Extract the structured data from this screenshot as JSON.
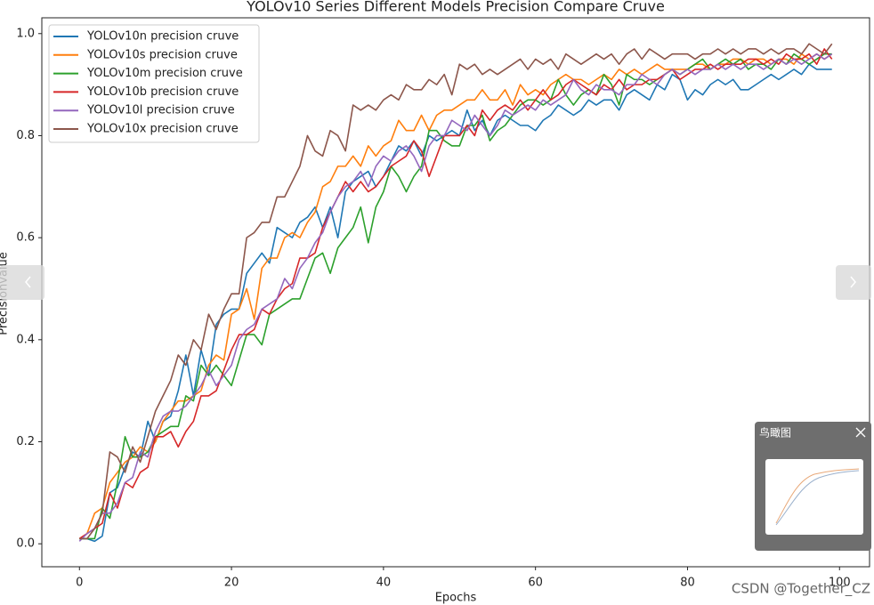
{
  "chart_data": {
    "type": "line",
    "title": "YOLOv10 Series Different Models Precision Compare Cruve",
    "xlabel": "Epochs",
    "ylabel": "Precisionvalue",
    "x": [
      0,
      1,
      2,
      3,
      4,
      5,
      6,
      7,
      8,
      9,
      10,
      11,
      12,
      13,
      14,
      15,
      16,
      17,
      18,
      19,
      20,
      21,
      22,
      23,
      24,
      25,
      26,
      27,
      28,
      29,
      30,
      31,
      32,
      33,
      34,
      35,
      36,
      37,
      38,
      39,
      40,
      41,
      42,
      43,
      44,
      45,
      46,
      47,
      48,
      49,
      50,
      51,
      52,
      53,
      54,
      55,
      56,
      57,
      58,
      59,
      60,
      61,
      62,
      63,
      64,
      65,
      66,
      67,
      68,
      69,
      70,
      71,
      72,
      73,
      74,
      75,
      76,
      77,
      78,
      79,
      80,
      81,
      82,
      83,
      84,
      85,
      86,
      87,
      88,
      89,
      90,
      91,
      92,
      93,
      94,
      95,
      96,
      97,
      98,
      99
    ],
    "series": [
      {
        "name": "YOLOv10n precision cruve",
        "color": "#1f77b4",
        "values": [
          0.01,
          0.01,
          0.005,
          0.015,
          0.1,
          0.11,
          0.15,
          0.18,
          0.17,
          0.24,
          0.2,
          0.24,
          0.25,
          0.3,
          0.37,
          0.29,
          0.38,
          0.33,
          0.43,
          0.45,
          0.46,
          0.46,
          0.53,
          0.55,
          0.57,
          0.55,
          0.62,
          0.61,
          0.6,
          0.63,
          0.64,
          0.66,
          0.62,
          0.66,
          0.6,
          0.69,
          0.71,
          0.72,
          0.73,
          0.7,
          0.72,
          0.75,
          0.78,
          0.77,
          0.79,
          0.76,
          0.8,
          0.79,
          0.8,
          0.81,
          0.8,
          0.85,
          0.81,
          0.83,
          0.8,
          0.83,
          0.84,
          0.83,
          0.82,
          0.82,
          0.81,
          0.83,
          0.84,
          0.86,
          0.85,
          0.84,
          0.85,
          0.87,
          0.86,
          0.87,
          0.87,
          0.85,
          0.88,
          0.89,
          0.88,
          0.87,
          0.9,
          0.89,
          0.92,
          0.91,
          0.87,
          0.89,
          0.88,
          0.9,
          0.91,
          0.9,
          0.91,
          0.89,
          0.89,
          0.9,
          0.91,
          0.92,
          0.91,
          0.92,
          0.93,
          0.92,
          0.94,
          0.93,
          0.93,
          0.93
        ]
      },
      {
        "name": "YOLOv10s precision cruve",
        "color": "#ff7f0e",
        "values": [
          0.01,
          0.02,
          0.06,
          0.07,
          0.12,
          0.14,
          0.16,
          0.17,
          0.19,
          0.18,
          0.2,
          0.24,
          0.26,
          0.28,
          0.28,
          0.29,
          0.3,
          0.35,
          0.37,
          0.36,
          0.45,
          0.46,
          0.5,
          0.44,
          0.54,
          0.56,
          0.56,
          0.6,
          0.61,
          0.6,
          0.63,
          0.65,
          0.7,
          0.71,
          0.74,
          0.74,
          0.76,
          0.74,
          0.78,
          0.76,
          0.78,
          0.79,
          0.83,
          0.81,
          0.81,
          0.84,
          0.81,
          0.84,
          0.85,
          0.85,
          0.86,
          0.87,
          0.87,
          0.89,
          0.87,
          0.87,
          0.89,
          0.86,
          0.9,
          0.88,
          0.89,
          0.88,
          0.9,
          0.91,
          0.92,
          0.91,
          0.91,
          0.9,
          0.91,
          0.92,
          0.91,
          0.93,
          0.92,
          0.93,
          0.92,
          0.93,
          0.94,
          0.93,
          0.93,
          0.93,
          0.93,
          0.94,
          0.94,
          0.93,
          0.94,
          0.94,
          0.95,
          0.95,
          0.94,
          0.95,
          0.95,
          0.94,
          0.95,
          0.95,
          0.94,
          0.96,
          0.95,
          0.96,
          0.95,
          0.96
        ]
      },
      {
        "name": "YOLOv10m precision cruve",
        "color": "#2ca02c",
        "values": [
          0.01,
          0.01,
          0.01,
          0.07,
          0.05,
          0.12,
          0.21,
          0.17,
          0.17,
          0.18,
          0.21,
          0.22,
          0.23,
          0.23,
          0.29,
          0.28,
          0.35,
          0.33,
          0.35,
          0.33,
          0.31,
          0.36,
          0.41,
          0.41,
          0.39,
          0.45,
          0.46,
          0.47,
          0.48,
          0.48,
          0.52,
          0.56,
          0.57,
          0.53,
          0.58,
          0.6,
          0.62,
          0.66,
          0.59,
          0.66,
          0.69,
          0.74,
          0.72,
          0.69,
          0.72,
          0.74,
          0.81,
          0.81,
          0.79,
          0.78,
          0.78,
          0.82,
          0.82,
          0.84,
          0.79,
          0.81,
          0.82,
          0.84,
          0.86,
          0.87,
          0.87,
          0.86,
          0.87,
          0.91,
          0.88,
          0.86,
          0.88,
          0.89,
          0.88,
          0.92,
          0.9,
          0.86,
          0.92,
          0.91,
          0.91,
          0.9,
          0.91,
          0.92,
          0.93,
          0.92,
          0.93,
          0.94,
          0.95,
          0.93,
          0.94,
          0.95,
          0.94,
          0.95,
          0.93,
          0.94,
          0.94,
          0.93,
          0.95,
          0.94,
          0.96,
          0.95,
          0.94,
          0.95,
          0.96,
          0.96
        ]
      },
      {
        "name": "YOLOv10b precision cruve",
        "color": "#d62728",
        "values": [
          0.01,
          0.02,
          0.03,
          0.04,
          0.1,
          0.07,
          0.12,
          0.11,
          0.14,
          0.15,
          0.21,
          0.21,
          0.22,
          0.19,
          0.22,
          0.24,
          0.29,
          0.29,
          0.3,
          0.34,
          0.38,
          0.41,
          0.41,
          0.42,
          0.46,
          0.45,
          0.48,
          0.5,
          0.51,
          0.56,
          0.56,
          0.57,
          0.62,
          0.65,
          0.68,
          0.71,
          0.69,
          0.71,
          0.69,
          0.7,
          0.72,
          0.74,
          0.75,
          0.76,
          0.79,
          0.77,
          0.72,
          0.76,
          0.8,
          0.8,
          0.8,
          0.82,
          0.8,
          0.85,
          0.83,
          0.85,
          0.86,
          0.85,
          0.87,
          0.85,
          0.87,
          0.89,
          0.87,
          0.88,
          0.9,
          0.91,
          0.9,
          0.89,
          0.88,
          0.9,
          0.89,
          0.91,
          0.89,
          0.9,
          0.9,
          0.91,
          0.91,
          0.92,
          0.93,
          0.91,
          0.92,
          0.93,
          0.93,
          0.94,
          0.93,
          0.94,
          0.94,
          0.94,
          0.95,
          0.95,
          0.94,
          0.95,
          0.94,
          0.96,
          0.95,
          0.95,
          0.96,
          0.94,
          0.97,
          0.95
        ]
      },
      {
        "name": "YOLOv10l precision cruve",
        "color": "#9467bd",
        "values": [
          0.005,
          0.02,
          0.03,
          0.06,
          0.06,
          0.08,
          0.12,
          0.13,
          0.18,
          0.17,
          0.22,
          0.25,
          0.26,
          0.26,
          0.27,
          0.29,
          0.31,
          0.34,
          0.31,
          0.33,
          0.35,
          0.4,
          0.42,
          0.43,
          0.46,
          0.47,
          0.48,
          0.52,
          0.5,
          0.54,
          0.56,
          0.59,
          0.61,
          0.65,
          0.68,
          0.7,
          0.71,
          0.73,
          0.7,
          0.74,
          0.76,
          0.75,
          0.77,
          0.78,
          0.76,
          0.73,
          0.78,
          0.8,
          0.8,
          0.83,
          0.82,
          0.81,
          0.84,
          0.82,
          0.8,
          0.82,
          0.85,
          0.84,
          0.85,
          0.86,
          0.85,
          0.87,
          0.86,
          0.87,
          0.88,
          0.91,
          0.89,
          0.88,
          0.9,
          0.89,
          0.89,
          0.88,
          0.9,
          0.9,
          0.92,
          0.91,
          0.9,
          0.92,
          0.93,
          0.92,
          0.93,
          0.92,
          0.93,
          0.93,
          0.94,
          0.93,
          0.94,
          0.93,
          0.94,
          0.94,
          0.93,
          0.94,
          0.95,
          0.94,
          0.95,
          0.94,
          0.95,
          0.96,
          0.95,
          0.96
        ]
      },
      {
        "name": "YOLOv10x precision cruve",
        "color": "#8c564b",
        "values": [
          0.01,
          0.01,
          0.03,
          0.06,
          0.18,
          0.17,
          0.14,
          0.19,
          0.16,
          0.21,
          0.26,
          0.29,
          0.32,
          0.37,
          0.35,
          0.4,
          0.38,
          0.45,
          0.42,
          0.46,
          0.49,
          0.49,
          0.6,
          0.61,
          0.63,
          0.63,
          0.68,
          0.68,
          0.71,
          0.74,
          0.8,
          0.77,
          0.76,
          0.81,
          0.8,
          0.77,
          0.86,
          0.85,
          0.86,
          0.85,
          0.87,
          0.88,
          0.87,
          0.9,
          0.89,
          0.89,
          0.91,
          0.9,
          0.92,
          0.88,
          0.94,
          0.93,
          0.94,
          0.92,
          0.93,
          0.92,
          0.93,
          0.94,
          0.95,
          0.93,
          0.95,
          0.94,
          0.95,
          0.93,
          0.96,
          0.95,
          0.94,
          0.95,
          0.96,
          0.95,
          0.96,
          0.94,
          0.96,
          0.97,
          0.95,
          0.97,
          0.96,
          0.95,
          0.96,
          0.96,
          0.96,
          0.95,
          0.96,
          0.96,
          0.97,
          0.96,
          0.97,
          0.96,
          0.97,
          0.97,
          0.96,
          0.97,
          0.96,
          0.97,
          0.97,
          0.96,
          0.98,
          0.97,
          0.96,
          0.98
        ]
      }
    ],
    "xlim": [
      -4.95,
      103.95
    ],
    "ylim": [
      -0.045,
      1.031
    ],
    "xticks": [
      0,
      20,
      40,
      60,
      80,
      100
    ],
    "yticks": [
      {
        "value": 0,
        "label": "0.0"
      },
      0.2,
      0.4,
      0.6,
      0.8,
      {
        "value": 1,
        "label": "1.0"
      }
    ],
    "grid": false,
    "legend": "upper left"
  },
  "viewer": {
    "minimap_title": "鸟瞰图",
    "watermark": "CSDN @Together_CZ"
  }
}
